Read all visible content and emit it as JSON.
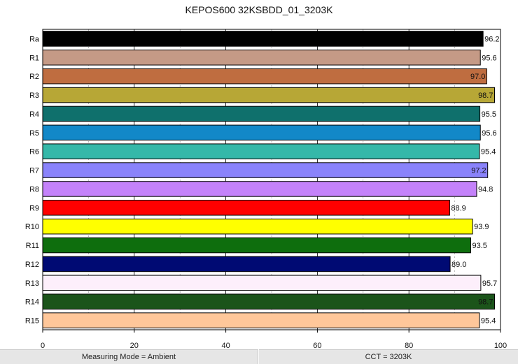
{
  "chart_data": {
    "type": "bar",
    "orientation": "horizontal",
    "title": "KEPOS600 32KSBDD_01_3203K",
    "xlabel": "",
    "ylabel": "",
    "xlim": [
      0,
      100
    ],
    "x_ticks": [
      "0",
      "20",
      "40",
      "60",
      "80",
      "100"
    ],
    "grid": "vertical solid at major ticks, dashed at midpoints",
    "categories": [
      "Ra",
      "R1",
      "R2",
      "R3",
      "R4",
      "R5",
      "R6",
      "R7",
      "R8",
      "R9",
      "R10",
      "R11",
      "R12",
      "R13",
      "R14",
      "R15"
    ],
    "values": [
      96.2,
      95.6,
      97.0,
      98.7,
      95.5,
      95.6,
      95.4,
      97.2,
      94.8,
      88.9,
      93.9,
      93.5,
      89.0,
      95.7,
      98.7,
      95.4
    ],
    "value_labels": [
      "96.2",
      "95.6",
      "97.0",
      "98.7",
      "95.5",
      "95.6",
      "95.4",
      "97.2",
      "94.8",
      "88.9",
      "93.9",
      "93.5",
      "89.0",
      "95.7",
      "98.7",
      "95.4"
    ],
    "colors": [
      "#000000",
      "#c59a86",
      "#bf6d40",
      "#b7a736",
      "#0f706c",
      "#1288c8",
      "#35b8a9",
      "#8a83fb",
      "#c482fa",
      "#ff0000",
      "#ffff00",
      "#0e6e0d",
      "#000a73",
      "#fdeffb",
      "#1b541a",
      "#ffc79a"
    ]
  },
  "status_bar": {
    "left": "Measuring Mode = Ambient",
    "right": "CCT = 3203K"
  }
}
